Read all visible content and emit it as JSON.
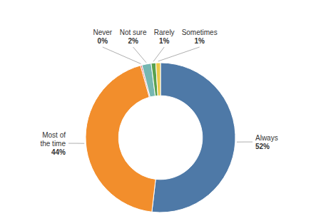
{
  "chart_data": {
    "type": "donut",
    "categories": [
      "Always",
      "Most of\nthe time",
      "Never",
      "Not sure",
      "Rarely",
      "Sometimes"
    ],
    "values": [
      52,
      44,
      0.3,
      2,
      1,
      1
    ],
    "value_labels": [
      "52%",
      "44%",
      "0%",
      "2%",
      "1%",
      "1%"
    ],
    "data_labels": true
  }
}
